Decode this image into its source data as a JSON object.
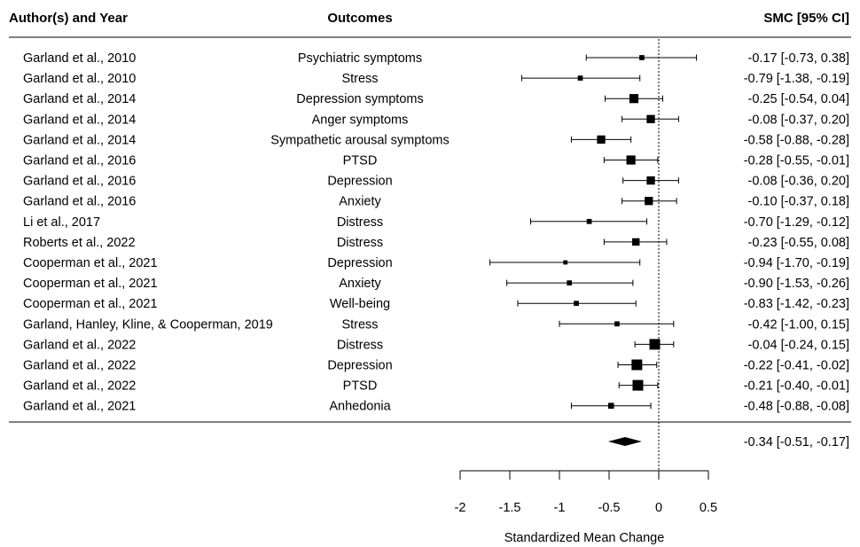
{
  "chart_data": {
    "type": "forest",
    "headers": {
      "study": "Author(s) and Year",
      "outcome": "Outcomes",
      "effect": "SMC [95% CI]"
    },
    "xlabel": "Standardized Mean Change",
    "xlim": [
      -2,
      0.5
    ],
    "xticks": [
      -2,
      -1.5,
      -1,
      -0.5,
      0,
      0.5
    ],
    "xtick_labels": [
      "-2",
      "-1.5",
      "-1",
      "-0.5",
      "0",
      "0.5"
    ],
    "reference_line": 0,
    "rows": [
      {
        "study": "Garland et al., 2010",
        "outcome": "Psychiatric symptoms",
        "est": -0.17,
        "lo": -0.73,
        "hi": 0.38,
        "label": "-0.17 [-0.73,  0.38]",
        "weight": 0.3
      },
      {
        "study": "Garland et al., 2010",
        "outcome": "Stress",
        "est": -0.79,
        "lo": -1.38,
        "hi": -0.19,
        "label": "-0.79 [-1.38, -0.19]",
        "weight": 0.3
      },
      {
        "study": "Garland et al., 2014",
        "outcome": "Depression symptoms",
        "est": -0.25,
        "lo": -0.54,
        "hi": 0.04,
        "label": "-0.25 [-0.54,  0.04]",
        "weight": 0.8
      },
      {
        "study": "Garland et al., 2014",
        "outcome": "Anger symptoms",
        "est": -0.08,
        "lo": -0.37,
        "hi": 0.2,
        "label": "-0.08 [-0.37,  0.20]",
        "weight": 0.7
      },
      {
        "study": "Garland et al., 2014",
        "outcome": "Sympathetic arousal symptoms",
        "est": -0.58,
        "lo": -0.88,
        "hi": -0.28,
        "label": "-0.58 [-0.88, -0.28]",
        "weight": 0.7
      },
      {
        "study": "Garland et al., 2016",
        "outcome": "PTSD",
        "est": -0.28,
        "lo": -0.55,
        "hi": -0.01,
        "label": "-0.28 [-0.55, -0.01]",
        "weight": 0.8
      },
      {
        "study": "Garland et al., 2016",
        "outcome": "Depression",
        "est": -0.08,
        "lo": -0.36,
        "hi": 0.2,
        "label": "-0.08 [-0.36,  0.20]",
        "weight": 0.7
      },
      {
        "study": "Garland et al., 2016",
        "outcome": "Anxiety",
        "est": -0.1,
        "lo": -0.37,
        "hi": 0.18,
        "label": "-0.10 [-0.37,  0.18]",
        "weight": 0.7
      },
      {
        "study": "Li et al., 2017",
        "outcome": "Distress",
        "est": -0.7,
        "lo": -1.29,
        "hi": -0.12,
        "label": "-0.70 [-1.29, -0.12]",
        "weight": 0.3
      },
      {
        "study": "Roberts et al., 2022",
        "outcome": "Distress",
        "est": -0.23,
        "lo": -0.55,
        "hi": 0.08,
        "label": "-0.23 [-0.55,  0.08]",
        "weight": 0.6
      },
      {
        "study": "Cooperman et al., 2021",
        "outcome": "Depression",
        "est": -0.94,
        "lo": -1.7,
        "hi": -0.19,
        "label": "-0.94 [-1.70, -0.19]",
        "weight": 0.2
      },
      {
        "study": "Cooperman et al., 2021",
        "outcome": "Anxiety",
        "est": -0.9,
        "lo": -1.53,
        "hi": -0.26,
        "label": "-0.90 [-1.53, -0.26]",
        "weight": 0.3
      },
      {
        "study": "Cooperman et al., 2021",
        "outcome": "Well-being",
        "est": -0.83,
        "lo": -1.42,
        "hi": -0.23,
        "label": "-0.83 [-1.42, -0.23]",
        "weight": 0.3
      },
      {
        "study": "Garland, Hanley, Kline, & Cooperman, 2019",
        "outcome": "Stress",
        "est": -0.42,
        "lo": -1.0,
        "hi": 0.15,
        "label": "-0.42 [-1.00,  0.15]",
        "weight": 0.3
      },
      {
        "study": "Garland et al., 2022",
        "outcome": "Distress",
        "est": -0.04,
        "lo": -0.24,
        "hi": 0.15,
        "label": "-0.04 [-0.24,  0.15]",
        "weight": 1.0
      },
      {
        "study": "Garland et al., 2022",
        "outcome": "Depression",
        "est": -0.22,
        "lo": -0.41,
        "hi": -0.02,
        "label": "-0.22 [-0.41, -0.02]",
        "weight": 1.0
      },
      {
        "study": "Garland et al., 2022",
        "outcome": "PTSD",
        "est": -0.21,
        "lo": -0.4,
        "hi": -0.01,
        "label": "-0.21 [-0.40, -0.01]",
        "weight": 1.0
      },
      {
        "study": "Garland et al., 2021",
        "outcome": "Anhedonia",
        "est": -0.48,
        "lo": -0.88,
        "hi": -0.08,
        "label": "-0.48 [-0.88, -0.08]",
        "weight": 0.4
      }
    ],
    "summary": {
      "est": -0.34,
      "lo": -0.51,
      "hi": -0.17,
      "label": "-0.34 [-0.51, -0.17]"
    }
  }
}
